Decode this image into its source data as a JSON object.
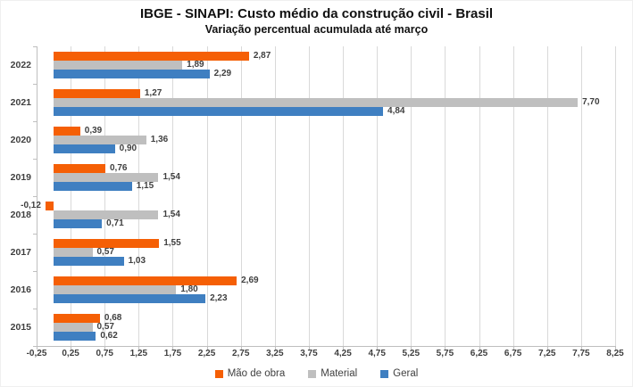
{
  "chart_data": {
    "type": "bar",
    "orientation": "horizontal",
    "title": "IBGE - SINAPI: Custo médio da construção civil - Brasil",
    "subtitle": "Variação percentual acumulada até março",
    "categories": [
      "2022",
      "2021",
      "2020",
      "2019",
      "2018",
      "2017",
      "2016",
      "2015"
    ],
    "series": [
      {
        "name": "Mão de obra",
        "color": "#f55f05",
        "values": [
          2.87,
          1.27,
          0.39,
          0.76,
          -0.12,
          1.55,
          2.69,
          0.68
        ],
        "labels": [
          "2,87",
          "1,27",
          "0,39",
          "0,76",
          "-0,12",
          "1,55",
          "2,69",
          "0,68"
        ]
      },
      {
        "name": "Material",
        "color": "#bfbfbf",
        "values": [
          1.89,
          7.7,
          1.36,
          1.54,
          1.54,
          0.57,
          1.8,
          0.57
        ],
        "labels": [
          "1,89",
          "7,70",
          "1,36",
          "1,54",
          "1,54",
          "0,57",
          "1,80",
          "0,57"
        ]
      },
      {
        "name": "Geral",
        "color": "#3f7fc1",
        "values": [
          2.29,
          4.84,
          0.9,
          1.15,
          0.71,
          1.03,
          2.23,
          0.62
        ],
        "labels": [
          "2,29",
          "4,84",
          "0,90",
          "1,15",
          "0,71",
          "1,03",
          "2,23",
          "0,62"
        ]
      }
    ],
    "x_axis": {
      "min": -0.25,
      "max": 8.25,
      "step": 0.5,
      "tick_labels": [
        "-0,25",
        "0,25",
        "0,75",
        "1,25",
        "1,75",
        "2,25",
        "2,75",
        "3,25",
        "3,75",
        "4,25",
        "4,75",
        "5,25",
        "5,75",
        "6,25",
        "6,75",
        "7,25",
        "7,75",
        "8,25"
      ]
    },
    "legend_position": "bottom",
    "grid": true,
    "colors": {
      "gridline": "#d9d9d9",
      "axis": "#bfbfbf",
      "label_text": "#3f3f3f",
      "title_text": "#111111"
    }
  }
}
